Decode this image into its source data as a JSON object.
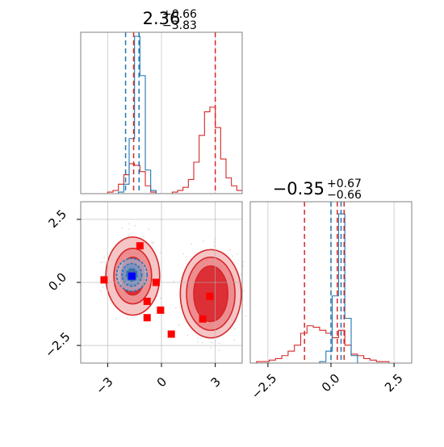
{
  "chart_data": [
    {
      "type": "histogram",
      "panel": "param-1-marginal",
      "title_base": "2.36",
      "title_upper": "+0.66",
      "title_lower": "−3.83",
      "xlim": [
        -4.5,
        4.5
      ],
      "series": [
        {
          "color": "#d62728",
          "bins_x": [
            -4.5,
            -4.2,
            -3.9,
            -3.6,
            -3.3,
            -3.0,
            -2.7,
            -2.4,
            -2.1,
            -1.8,
            -1.5,
            -1.2,
            -0.9,
            -0.6,
            -0.3,
            0.0,
            0.3,
            0.6,
            0.9,
            1.2,
            1.5,
            1.8,
            2.1,
            2.4,
            2.7,
            3.0,
            3.3,
            3.6,
            3.9,
            4.2,
            4.5
          ],
          "heights": [
            0,
            0,
            0,
            0,
            0,
            0.01,
            0.02,
            0.06,
            0.12,
            0.19,
            0.18,
            0.14,
            0.05,
            0.01,
            0,
            0,
            0,
            0.01,
            0.02,
            0.04,
            0.09,
            0.2,
            0.37,
            0.52,
            0.55,
            0.42,
            0.22,
            0.1,
            0.05,
            0.02
          ]
        },
        {
          "color": "#1f77b4",
          "bins_x": [
            -4.5,
            -4.2,
            -3.9,
            -3.6,
            -3.3,
            -3.0,
            -2.7,
            -2.4,
            -2.1,
            -1.8,
            -1.5,
            -1.2,
            -0.9,
            -0.6,
            -0.3,
            0.0,
            0.3,
            0.6,
            0.9,
            1.2,
            1.5,
            1.8,
            2.1,
            2.4,
            2.7,
            3.0,
            3.3,
            3.6,
            3.9,
            4.2,
            4.5
          ],
          "heights": [
            0,
            0,
            0,
            0,
            0,
            0,
            0,
            0.01,
            0.06,
            0.35,
            1.0,
            0.75,
            0.15,
            0.02,
            0,
            0,
            0,
            0,
            0,
            0,
            0,
            0,
            0,
            0,
            0,
            0,
            0,
            0,
            0,
            0
          ]
        }
      ],
      "vlines": [
        {
          "x": -2.0,
          "color": "#1f77b4"
        },
        {
          "x": -1.25,
          "color": "#1f77b4"
        },
        {
          "x": -1.55,
          "color": "#d62728"
        },
        {
          "x": 3.0,
          "color": "#d62728"
        }
      ]
    },
    {
      "type": "scatter",
      "panel": "joint-2d",
      "xlim": [
        -4.5,
        4.5
      ],
      "ylim": [
        -3.2,
        3.2
      ],
      "xticks": [
        "−3",
        "0",
        "3"
      ],
      "xtick_values": [
        -3,
        0,
        3
      ],
      "yticks": [
        "−2.5",
        "0.0",
        "2.5"
      ],
      "ytick_values": [
        -2.5,
        0.0,
        2.5
      ],
      "xgrid": [
        -3,
        0,
        3
      ],
      "ygrid": [
        -2.5,
        0.0,
        2.5
      ],
      "red_blobs": [
        {
          "cx": -1.6,
          "cy": 0.25,
          "levels": [
            [
              1.5,
              1.55
            ],
            [
              1.05,
              1.1
            ],
            [
              0.65,
              0.75
            ]
          ]
        },
        {
          "cx": 2.75,
          "cy": -0.45,
          "levels": [
            [
              1.7,
              1.75
            ],
            [
              1.35,
              1.45
            ],
            [
              0.95,
              1.1
            ]
          ]
        }
      ],
      "blue_blob": {
        "cx": -1.65,
        "cy": 0.3,
        "levels": [
          [
            0.85,
            0.65
          ],
          [
            0.55,
            0.45
          ],
          [
            0.3,
            0.25
          ]
        ]
      },
      "markers": [
        {
          "x": -3.2,
          "y": 0.1
        },
        {
          "x": -1.2,
          "y": 1.45
        },
        {
          "x": -0.3,
          "y": 0.0
        },
        {
          "x": -0.8,
          "y": -0.75
        },
        {
          "x": -0.8,
          "y": -1.4
        },
        {
          "x": -0.05,
          "y": -1.1
        },
        {
          "x": 0.55,
          "y": -2.05
        },
        {
          "x": 2.7,
          "y": -0.55
        },
        {
          "x": 2.3,
          "y": -1.45
        }
      ],
      "truth": {
        "x": -1.65,
        "y": 0.25,
        "color": "#0000ff"
      }
    },
    {
      "type": "histogram",
      "panel": "param-2-marginal",
      "title_base": "−0.35",
      "title_upper": "+0.67",
      "title_lower": "−0.66",
      "xlim": [
        -3.2,
        3.2
      ],
      "xticks": [
        "−2.5",
        "0.0",
        "2.5"
      ],
      "xtick_values": [
        -2.5,
        0.0,
        2.5
      ],
      "series": [
        {
          "color": "#d62728",
          "bins_x": [
            -3.2,
            -2.95,
            -2.7,
            -2.45,
            -2.2,
            -1.95,
            -1.7,
            -1.45,
            -1.2,
            -0.95,
            -0.7,
            -0.45,
            -0.2,
            0.05,
            0.3,
            0.55,
            0.8,
            1.05,
            1.3,
            1.55,
            1.8,
            2.05,
            2.3,
            2.55,
            2.8,
            3.05
          ],
          "heights": [
            0,
            0.01,
            0.01,
            0.02,
            0.03,
            0.05,
            0.08,
            0.12,
            0.2,
            0.25,
            0.24,
            0.22,
            0.2,
            0.17,
            0.22,
            0.12,
            0.06,
            0.05,
            0.03,
            0.02,
            0.01,
            0.01,
            0,
            0,
            0
          ]
        },
        {
          "color": "#1f77b4",
          "bins_x": [
            -3.2,
            -2.95,
            -2.7,
            -2.45,
            -2.2,
            -1.95,
            -1.7,
            -1.45,
            -1.2,
            -0.95,
            -0.7,
            -0.45,
            -0.2,
            0.05,
            0.3,
            0.55,
            0.8,
            1.05,
            1.3,
            1.55,
            1.8,
            2.05,
            2.3,
            2.55,
            2.8,
            3.05
          ],
          "heights": [
            0,
            0,
            0,
            0,
            0,
            0,
            0,
            0,
            0,
            0,
            0,
            0.01,
            0.08,
            0.45,
            1.0,
            0.3,
            0.05,
            0,
            0,
            0,
            0,
            0,
            0,
            0,
            0
          ]
        }
      ],
      "vlines": [
        {
          "x": -1.05,
          "color": "#d62728"
        },
        {
          "x": 0.0,
          "color": "#1f77b4"
        },
        {
          "x": 0.25,
          "color": "#d62728"
        },
        {
          "x": 0.4,
          "color": "#1f77b4"
        },
        {
          "x": 0.52,
          "color": "#d62728"
        }
      ]
    }
  ]
}
